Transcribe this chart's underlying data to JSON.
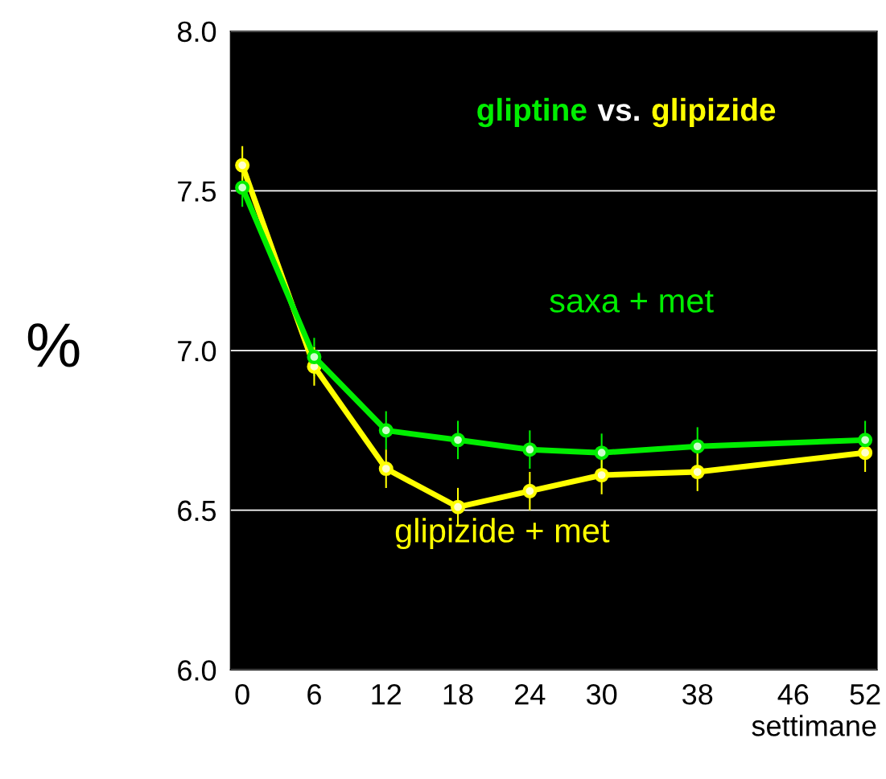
{
  "chart_data": {
    "type": "line",
    "title": "gliptine vs. glipizide",
    "xlabel": "settimane",
    "ylabel": "%",
    "x": [
      0,
      6,
      12,
      18,
      24,
      30,
      38,
      52
    ],
    "series": [
      {
        "name": "saxa + met",
        "color": "#00ee00",
        "values": [
          7.51,
          6.98,
          6.75,
          6.72,
          6.69,
          6.68,
          6.7,
          6.72
        ],
        "errors": [
          0.06,
          0.06,
          0.06,
          0.06,
          0.06,
          0.06,
          0.06,
          0.06
        ]
      },
      {
        "name": "glipizide + met",
        "color": "#ffff00",
        "values": [
          7.58,
          6.95,
          6.63,
          6.51,
          6.56,
          6.61,
          6.62,
          6.68
        ],
        "errors": [
          0.06,
          0.06,
          0.06,
          0.06,
          0.06,
          0.06,
          0.06,
          0.06
        ]
      }
    ],
    "xlim": [
      -1,
      53
    ],
    "ylim": [
      6.0,
      8.0
    ],
    "xticks": [
      0,
      6,
      12,
      18,
      24,
      30,
      38,
      46,
      52
    ],
    "yticks": [
      {
        "value": 6.0,
        "label": "6.0"
      },
      {
        "value": 6.5,
        "label": "6.5"
      },
      {
        "value": 7.0,
        "label": "7.0"
      },
      {
        "value": 7.5,
        "label": "7.5"
      },
      {
        "value": 8.0,
        "label": "8.0"
      }
    ],
    "grid": "y",
    "marker": "circle",
    "line_style": "solid"
  }
}
